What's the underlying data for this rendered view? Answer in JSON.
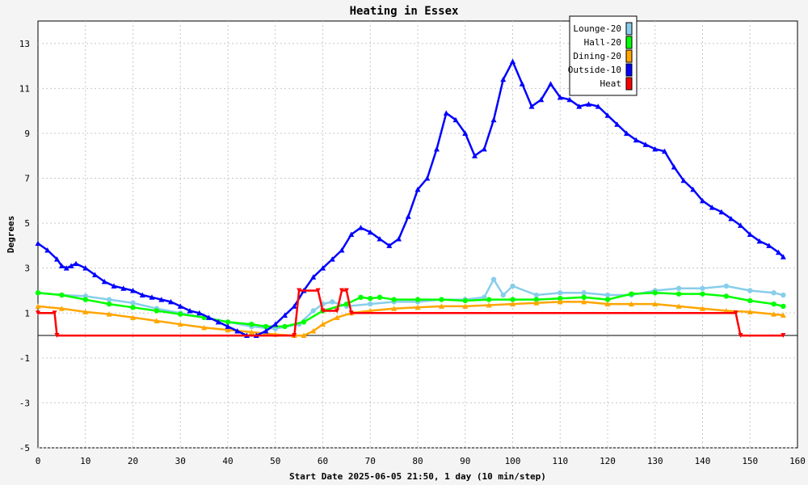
{
  "chart_data": {
    "type": "line",
    "title": "Heating in Essex",
    "xlabel": "Start Date 2025-06-05 21:50, 1 day (10 min/step)",
    "ylabel": "Degrees",
    "xlim": [
      0,
      160
    ],
    "ylim": [
      -5,
      14
    ],
    "x_ticks": [
      0,
      10,
      20,
      30,
      40,
      50,
      60,
      70,
      80,
      90,
      100,
      110,
      120,
      130,
      140,
      150,
      160
    ],
    "y_ticks": [
      -5,
      -3,
      -1,
      1,
      3,
      5,
      7,
      9,
      11,
      13
    ],
    "grid": true,
    "legend_position": "top-right",
    "series": [
      {
        "name": "Lounge-20",
        "color": "#87ceeb",
        "x": [
          0,
          5,
          10,
          15,
          20,
          25,
          30,
          35,
          40,
          45,
          50,
          55,
          58,
          60,
          62,
          65,
          70,
          75,
          80,
          85,
          90,
          94,
          96,
          98,
          100,
          105,
          110,
          115,
          120,
          125,
          130,
          135,
          140,
          145,
          150,
          155,
          157
        ],
        "y": [
          1.9,
          1.8,
          1.75,
          1.6,
          1.45,
          1.2,
          1.0,
          0.8,
          0.6,
          0.4,
          0.3,
          0.5,
          1.1,
          1.4,
          1.5,
          1.3,
          1.4,
          1.5,
          1.5,
          1.6,
          1.6,
          1.7,
          2.5,
          1.8,
          2.2,
          1.8,
          1.9,
          1.9,
          1.8,
          1.8,
          2.0,
          2.1,
          2.1,
          2.2,
          2.0,
          1.9,
          1.8
        ]
      },
      {
        "name": "Hall-20",
        "color": "#00ff00",
        "x": [
          0,
          5,
          10,
          15,
          20,
          25,
          30,
          35,
          40,
          45,
          48,
          52,
          56,
          60,
          65,
          68,
          70,
          72,
          75,
          80,
          85,
          90,
          95,
          100,
          105,
          110,
          115,
          120,
          125,
          130,
          135,
          140,
          145,
          150,
          155,
          157
        ],
        "y": [
          1.9,
          1.8,
          1.6,
          1.4,
          1.25,
          1.1,
          0.95,
          0.8,
          0.6,
          0.5,
          0.4,
          0.4,
          0.6,
          1.1,
          1.4,
          1.7,
          1.65,
          1.7,
          1.6,
          1.6,
          1.6,
          1.55,
          1.6,
          1.6,
          1.6,
          1.65,
          1.7,
          1.6,
          1.85,
          1.9,
          1.85,
          1.85,
          1.75,
          1.55,
          1.4,
          1.3
        ]
      },
      {
        "name": "Dining-20",
        "color": "#ffa500",
        "x": [
          0,
          5,
          10,
          15,
          20,
          25,
          30,
          35,
          40,
          45,
          50,
          54,
          56,
          58,
          60,
          63,
          66,
          70,
          75,
          80,
          85,
          90,
          95,
          100,
          105,
          110,
          115,
          120,
          125,
          130,
          135,
          140,
          145,
          150,
          155,
          157
        ],
        "y": [
          1.3,
          1.2,
          1.05,
          0.95,
          0.8,
          0.65,
          0.5,
          0.35,
          0.25,
          0.15,
          0.05,
          0.0,
          0.0,
          0.2,
          0.5,
          0.8,
          1.0,
          1.1,
          1.2,
          1.25,
          1.3,
          1.3,
          1.35,
          1.4,
          1.45,
          1.5,
          1.5,
          1.4,
          1.4,
          1.4,
          1.3,
          1.2,
          1.1,
          1.05,
          0.95,
          0.9
        ]
      },
      {
        "name": "Outside-10",
        "color": "#0000ff",
        "x": [
          0,
          2,
          4,
          5,
          6,
          7,
          8,
          10,
          12,
          14,
          16,
          18,
          20,
          22,
          24,
          26,
          28,
          30,
          32,
          34,
          36,
          38,
          40,
          42,
          44,
          46,
          48,
          50,
          52,
          54,
          56,
          58,
          60,
          62,
          64,
          66,
          68,
          70,
          72,
          74,
          76,
          78,
          80,
          82,
          84,
          86,
          88,
          90,
          92,
          94,
          96,
          98,
          100,
          102,
          104,
          106,
          108,
          110,
          112,
          114,
          116,
          118,
          120,
          122,
          124,
          126,
          128,
          130,
          132,
          134,
          136,
          138,
          140,
          142,
          144,
          146,
          148,
          150,
          152,
          154,
          156,
          157
        ],
        "y": [
          4.1,
          3.8,
          3.4,
          3.1,
          3.0,
          3.1,
          3.2,
          3.0,
          2.7,
          2.4,
          2.2,
          2.1,
          2.0,
          1.8,
          1.7,
          1.6,
          1.5,
          1.3,
          1.1,
          1.0,
          0.8,
          0.6,
          0.4,
          0.2,
          0.0,
          0.0,
          0.2,
          0.5,
          0.9,
          1.3,
          2.0,
          2.6,
          3.0,
          3.4,
          3.8,
          4.5,
          4.8,
          4.6,
          4.3,
          4.0,
          4.3,
          5.3,
          6.5,
          7.0,
          8.3,
          9.9,
          9.6,
          9.0,
          8.0,
          8.3,
          9.6,
          11.4,
          12.2,
          11.2,
          10.2,
          10.5,
          11.2,
          10.6,
          10.5,
          10.2,
          10.3,
          10.2,
          9.8,
          9.4,
          9.0,
          8.7,
          8.5,
          8.3,
          8.2,
          7.5,
          6.9,
          6.5,
          6.0,
          5.7,
          5.5,
          5.2,
          4.9,
          4.5,
          4.2,
          4.0,
          3.7,
          3.5
        ]
      },
      {
        "name": "Heat",
        "color": "#ff0000",
        "x": [
          0,
          3.5,
          4,
          54,
          55,
          59,
          60,
          63,
          64,
          65,
          66,
          147,
          148,
          157
        ],
        "y": [
          1,
          1,
          0,
          0,
          2,
          2,
          1.1,
          1.1,
          2,
          2,
          1,
          1,
          0,
          0
        ]
      }
    ]
  }
}
